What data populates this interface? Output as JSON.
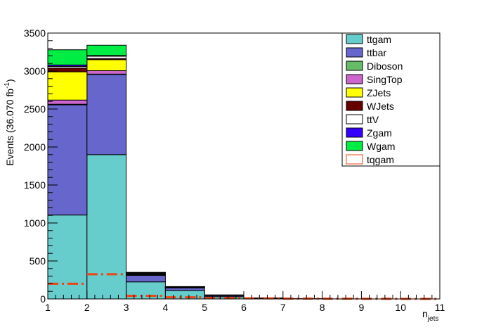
{
  "chart_data": {
    "type": "bar",
    "stacked": true,
    "x_edges": [
      1,
      2,
      3,
      4,
      5,
      6,
      7,
      8,
      9,
      10,
      11
    ],
    "xlim": [
      1,
      11
    ],
    "ylim": [
      0,
      3500
    ],
    "xticks": [
      "1",
      "2",
      "3",
      "4",
      "5",
      "6",
      "7",
      "8",
      "9",
      "10",
      "11"
    ],
    "yticks": [
      "0",
      "500",
      "1000",
      "1500",
      "2000",
      "2500",
      "3000",
      "3500"
    ],
    "xlabel_main": "n",
    "xlabel_sub": "jets",
    "ylabel_main": "Events (36.070 fb",
    "ylabel_sup": "-1",
    "ylabel_tail": ")",
    "grid": false,
    "legend_position": "top-right",
    "series": [
      {
        "name": "ttgam",
        "color": "#66cccc",
        "values": [
          1105,
          1900,
          225,
          110,
          30,
          8,
          2,
          1,
          0,
          0
        ]
      },
      {
        "name": "ttbar",
        "color": "#6666cc",
        "values": [
          1450,
          1055,
          85,
          35,
          15,
          4,
          1,
          0,
          0,
          0
        ]
      },
      {
        "name": "Diboson",
        "color": "#66bb66",
        "values": [
          8,
          5,
          1,
          0,
          0,
          0,
          0,
          0,
          0,
          0
        ]
      },
      {
        "name": "SingTop",
        "color": "#cc66cc",
        "values": [
          55,
          45,
          5,
          2,
          1,
          0,
          0,
          0,
          0,
          0
        ]
      },
      {
        "name": "ZJets",
        "color": "#ffff00",
        "values": [
          372,
          145,
          10,
          5,
          2,
          0,
          0,
          0,
          0,
          0
        ]
      },
      {
        "name": "WJets",
        "color": "#660000",
        "values": [
          50,
          15,
          5,
          2,
          1,
          0,
          0,
          0,
          0,
          0
        ]
      },
      {
        "name": "ttV",
        "color": "#ffffff",
        "values": [
          20,
          30,
          10,
          5,
          2,
          1,
          0,
          0,
          0,
          0
        ]
      },
      {
        "name": "Zgam",
        "color": "#3300ff",
        "values": [
          20,
          10,
          5,
          2,
          1,
          0,
          0,
          0,
          0,
          0
        ]
      },
      {
        "name": "Wgam",
        "color": "#00ee44",
        "values": [
          200,
          135,
          4,
          2,
          1,
          0,
          0,
          0,
          0,
          0
        ]
      }
    ],
    "overlay": {
      "name": "tqgam",
      "color": "#ee4411",
      "style": "dashed",
      "values": [
        200,
        325,
        40,
        22,
        12,
        8,
        5,
        3,
        2,
        1
      ]
    }
  }
}
